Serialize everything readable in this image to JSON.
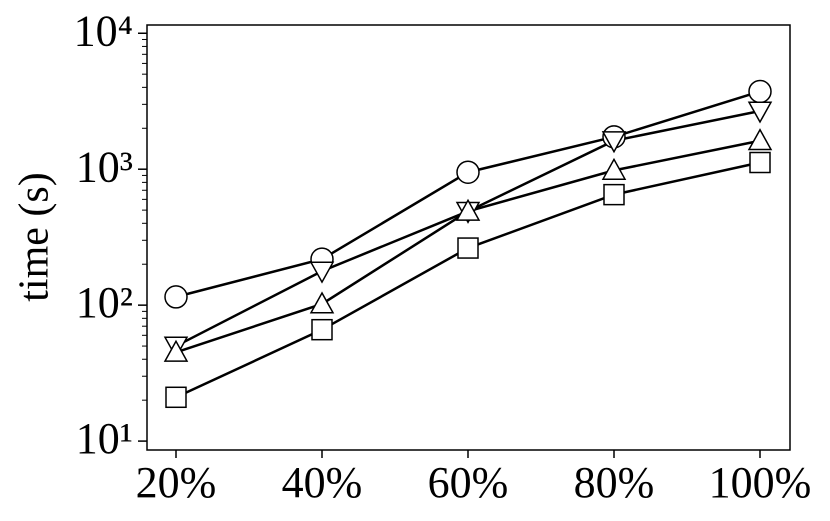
{
  "chart_data": {
    "type": "line",
    "y_label": "time (s)",
    "categories": [
      "20%",
      "40%",
      "60%",
      "80%",
      "100%"
    ],
    "series": [
      {
        "color": "#000000",
        "marker": "circle",
        "values": [
          115,
          218,
          950,
          1730,
          3730
        ]
      },
      {
        "color": "#000000",
        "marker": "triangle-down",
        "values": [
          50,
          178,
          490,
          1620,
          2680
        ]
      },
      {
        "color": "#000000",
        "marker": "triangle-up",
        "values": [
          45,
          102,
          490,
          980,
          1620
        ]
      },
      {
        "color": "#000000",
        "marker": "square",
        "values": [
          21,
          66,
          263,
          650,
          1120
        ]
      }
    ],
    "ylim": [
      8.6,
      11500
    ],
    "log_y": true,
    "yticks": [
      {
        "value": 10,
        "label": "10¹"
      },
      {
        "value": 100,
        "label": "10²"
      },
      {
        "value": 1000,
        "label": "10³"
      },
      {
        "value": 10000,
        "label": "10⁴"
      }
    ],
    "yminorticks": [
      20,
      30,
      40,
      50,
      60,
      70,
      80,
      90,
      200,
      300,
      400,
      500,
      600,
      700,
      800,
      900,
      2000,
      3000,
      4000,
      5000,
      6000,
      7000,
      8000,
      9000
    ],
    "grid": false
  }
}
